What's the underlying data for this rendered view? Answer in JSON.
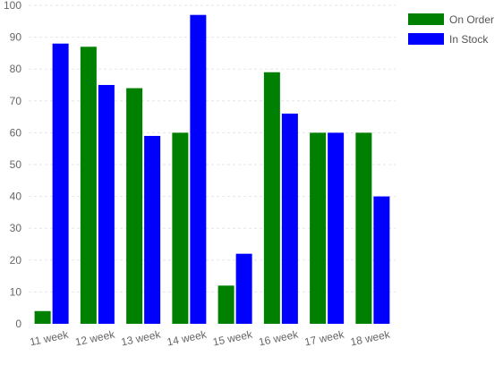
{
  "chart_data": {
    "type": "bar",
    "categories": [
      "11 week",
      "12 week",
      "13 week",
      "14 week",
      "15 week",
      "16 week",
      "17 week",
      "18 week"
    ],
    "series": [
      {
        "name": "On Order",
        "values": [
          4,
          87,
          74,
          60,
          12,
          79,
          60,
          60
        ],
        "color": "#008000"
      },
      {
        "name": "In Stock",
        "values": [
          88,
          75,
          59,
          97,
          22,
          66,
          60,
          40
        ],
        "color": "#0000ff"
      }
    ],
    "ylim": [
      0,
      100
    ],
    "yticks": [
      0,
      10,
      20,
      30,
      40,
      50,
      60,
      70,
      80,
      90,
      100
    ],
    "grid": true,
    "legend": "top-right"
  }
}
